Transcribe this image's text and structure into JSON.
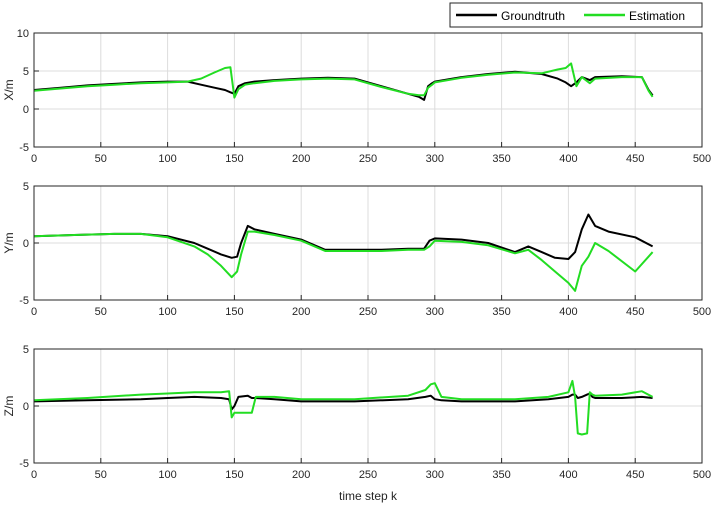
{
  "legend": {
    "position": "top-right",
    "entries": [
      "Groundtruth",
      "Estimation"
    ]
  },
  "colors": {
    "groundtruth": "#000000",
    "estimation": "#22dd22",
    "grid": "#dcdcdc",
    "axis": "#262626"
  },
  "chart_data": [
    {
      "type": "line",
      "ylabel": "X/m",
      "xlabel": "",
      "xlim": [
        0,
        500
      ],
      "ylim": [
        -5,
        10
      ],
      "grid": true,
      "xticks": [
        "0",
        "50",
        "100",
        "150",
        "200",
        "250",
        "300",
        "350",
        "400",
        "450",
        "500"
      ],
      "yticks": [
        "-5",
        "0",
        "5",
        "10"
      ],
      "x": [
        0,
        20,
        40,
        60,
        80,
        100,
        115,
        125,
        135,
        143,
        147,
        150,
        153,
        158,
        165,
        180,
        200,
        220,
        240,
        260,
        280,
        288,
        292,
        295,
        298,
        300,
        320,
        340,
        360,
        380,
        392,
        398,
        402,
        406,
        410,
        416,
        420,
        440,
        455,
        460,
        463
      ],
      "series": [
        {
          "name": "Groundtruth",
          "values": [
            2.5,
            2.8,
            3.1,
            3.3,
            3.5,
            3.6,
            3.6,
            3.2,
            2.8,
            2.5,
            2.2,
            2.0,
            3.0,
            3.4,
            3.6,
            3.8,
            4.0,
            4.1,
            4.0,
            3.0,
            2.0,
            1.6,
            1.2,
            3.0,
            3.4,
            3.6,
            4.2,
            4.6,
            4.9,
            4.6,
            4.0,
            3.5,
            3.0,
            3.5,
            4.2,
            3.8,
            4.2,
            4.3,
            4.2,
            2.5,
            1.8
          ]
        },
        {
          "name": "Estimation",
          "values": [
            2.4,
            2.7,
            3.0,
            3.2,
            3.4,
            3.5,
            3.6,
            4.0,
            4.8,
            5.4,
            5.5,
            1.5,
            2.6,
            3.2,
            3.4,
            3.7,
            3.9,
            4.0,
            3.9,
            2.9,
            2.0,
            1.8,
            1.8,
            2.8,
            3.2,
            3.5,
            4.1,
            4.5,
            4.8,
            4.7,
            5.2,
            5.4,
            6.0,
            3.0,
            4.2,
            3.4,
            4.0,
            4.2,
            4.2,
            2.4,
            1.6
          ]
        }
      ]
    },
    {
      "type": "line",
      "ylabel": "Y/m",
      "xlabel": "",
      "xlim": [
        0,
        500
      ],
      "ylim": [
        -5,
        5
      ],
      "grid": true,
      "xticks": [
        "0",
        "50",
        "100",
        "150",
        "200",
        "250",
        "300",
        "350",
        "400",
        "450",
        "500"
      ],
      "yticks": [
        "-5",
        "0",
        "5"
      ],
      "x": [
        0,
        30,
        60,
        80,
        100,
        120,
        130,
        140,
        148,
        152,
        155,
        160,
        165,
        180,
        200,
        218,
        240,
        260,
        280,
        292,
        296,
        300,
        320,
        340,
        360,
        370,
        380,
        390,
        400,
        405,
        410,
        415,
        420,
        430,
        450,
        463
      ],
      "series": [
        {
          "name": "Groundtruth",
          "values": [
            0.6,
            0.7,
            0.8,
            0.8,
            0.6,
            0.0,
            -0.5,
            -1.0,
            -1.3,
            -1.2,
            0.0,
            1.5,
            1.2,
            0.8,
            0.3,
            -0.6,
            -0.6,
            -0.6,
            -0.5,
            -0.5,
            0.2,
            0.4,
            0.3,
            0.0,
            -0.8,
            -0.3,
            -0.8,
            -1.3,
            -1.4,
            -0.8,
            1.2,
            2.5,
            1.5,
            1.0,
            0.5,
            -0.3
          ]
        },
        {
          "name": "Estimation",
          "values": [
            0.6,
            0.7,
            0.8,
            0.8,
            0.5,
            -0.3,
            -1.0,
            -2.0,
            -3.0,
            -2.5,
            -1.0,
            1.0,
            1.0,
            0.7,
            0.2,
            -0.7,
            -0.7,
            -0.7,
            -0.6,
            -0.6,
            -0.3,
            0.2,
            0.1,
            -0.2,
            -0.9,
            -0.6,
            -1.5,
            -2.5,
            -3.5,
            -4.2,
            -2.0,
            -1.2,
            0.0,
            -0.7,
            -2.5,
            -0.8
          ]
        }
      ]
    },
    {
      "type": "line",
      "ylabel": "Z/m",
      "xlabel": "time step k",
      "xlim": [
        0,
        500
      ],
      "ylim": [
        -5,
        5
      ],
      "grid": true,
      "xticks": [
        "0",
        "50",
        "100",
        "150",
        "200",
        "250",
        "300",
        "350",
        "400",
        "450",
        "500"
      ],
      "yticks": [
        "-5",
        "0",
        "5"
      ],
      "x": [
        0,
        40,
        80,
        100,
        120,
        140,
        146,
        148,
        150,
        153,
        160,
        163,
        166,
        180,
        200,
        240,
        280,
        293,
        297,
        300,
        305,
        320,
        360,
        385,
        400,
        403,
        405,
        407,
        410,
        414,
        416,
        418,
        420,
        440,
        455,
        463
      ],
      "series": [
        {
          "name": "Groundtruth",
          "values": [
            0.4,
            0.5,
            0.6,
            0.7,
            0.8,
            0.7,
            0.6,
            -0.3,
            0.0,
            0.8,
            0.9,
            0.7,
            0.7,
            0.6,
            0.4,
            0.4,
            0.6,
            0.8,
            0.9,
            0.6,
            0.5,
            0.4,
            0.4,
            0.6,
            0.8,
            1.0,
            1.0,
            0.7,
            0.8,
            1.0,
            1.1,
            0.8,
            0.7,
            0.7,
            0.8,
            0.7
          ]
        },
        {
          "name": "Estimation",
          "values": [
            0.5,
            0.7,
            1.0,
            1.1,
            1.2,
            1.2,
            1.3,
            -1.0,
            -0.6,
            -0.6,
            -0.6,
            -0.6,
            0.8,
            0.8,
            0.6,
            0.6,
            0.9,
            1.4,
            1.9,
            2.0,
            0.8,
            0.6,
            0.6,
            0.8,
            1.2,
            2.2,
            0.8,
            -2.4,
            -2.5,
            -2.4,
            1.2,
            1.0,
            0.9,
            1.0,
            1.3,
            0.8
          ]
        }
      ]
    }
  ]
}
